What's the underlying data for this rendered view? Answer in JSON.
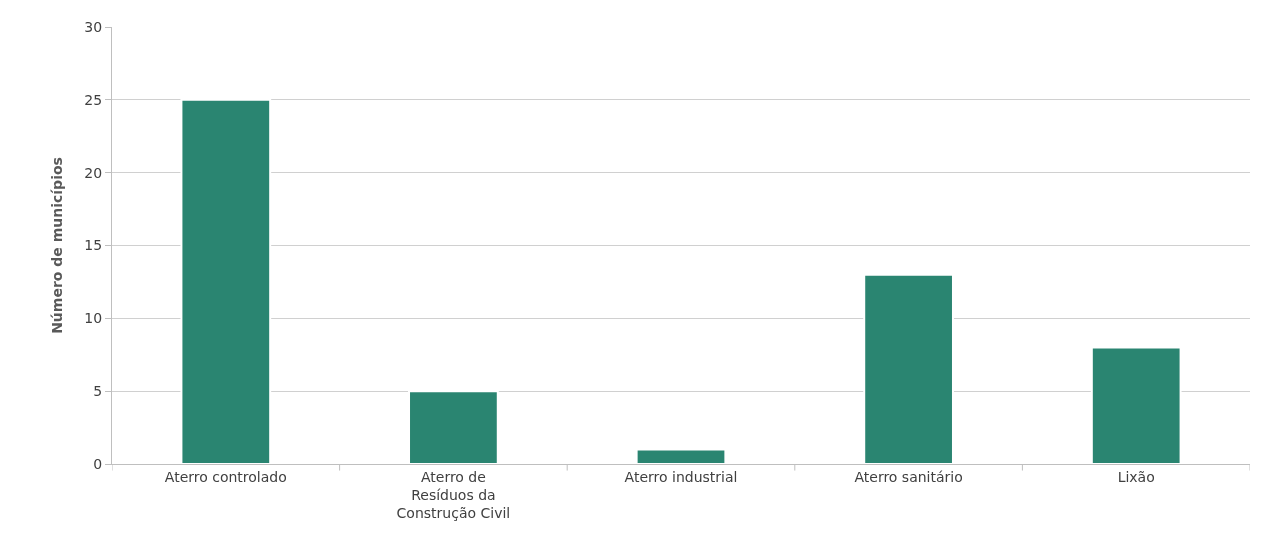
{
  "chart_data": {
    "type": "bar",
    "ylabel": "Número de municípios",
    "categories": [
      "Aterro controlado",
      "Aterro de Resíduos da Construção Civil",
      "Aterro industrial",
      "Aterro sanitário",
      "Lixão"
    ],
    "values": [
      25,
      5,
      1,
      13,
      8
    ],
    "color": "#2a8571",
    "ylim": [
      0,
      30
    ],
    "yticks": [
      0,
      5,
      10,
      15,
      20,
      25,
      30
    ],
    "grid": "y"
  }
}
